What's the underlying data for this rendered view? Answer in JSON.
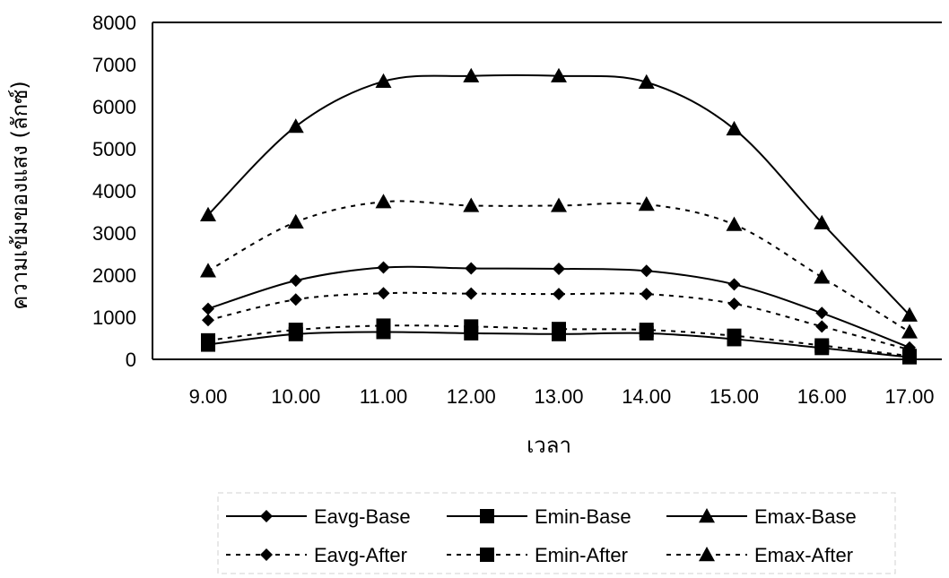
{
  "chart_data": {
    "type": "line",
    "title": "",
    "xlabel": "เวลา",
    "ylabel": "ความเข้มของแสง (ลักซ์)",
    "categories": [
      "9.00",
      "10.00",
      "11.00",
      "12.00",
      "13.00",
      "14.00",
      "15.00",
      "16.00",
      "17.00"
    ],
    "ylim": [
      0,
      8000
    ],
    "y_ticks": [
      "0",
      "1000",
      "2000",
      "3000",
      "4000",
      "5000",
      "6000",
      "7000",
      "8000"
    ],
    "grid": false,
    "legend_position": "bottom",
    "series": [
      {
        "name": "Eavg-Base",
        "style": "solid",
        "marker": "diamond",
        "values": [
          1200,
          1870,
          2180,
          2160,
          2150,
          2100,
          1780,
          1100,
          280
        ]
      },
      {
        "name": "Emin-Base",
        "style": "solid",
        "marker": "square",
        "values": [
          350,
          600,
          650,
          620,
          600,
          620,
          480,
          270,
          50
        ]
      },
      {
        "name": "Emax-Base",
        "style": "solid",
        "marker": "triangle",
        "values": [
          3430,
          5530,
          6600,
          6730,
          6730,
          6580,
          5470,
          3240,
          1050
        ]
      },
      {
        "name": "Eavg-After",
        "style": "dotted",
        "marker": "diamond",
        "values": [
          930,
          1420,
          1570,
          1560,
          1550,
          1550,
          1320,
          780,
          230
        ]
      },
      {
        "name": "Emin-After",
        "style": "dotted",
        "marker": "square",
        "values": [
          450,
          700,
          800,
          780,
          720,
          700,
          560,
          330,
          80
        ]
      },
      {
        "name": "Emax-After",
        "style": "dotted",
        "marker": "triangle",
        "values": [
          2100,
          3260,
          3740,
          3650,
          3650,
          3680,
          3200,
          1950,
          650
        ]
      }
    ]
  }
}
